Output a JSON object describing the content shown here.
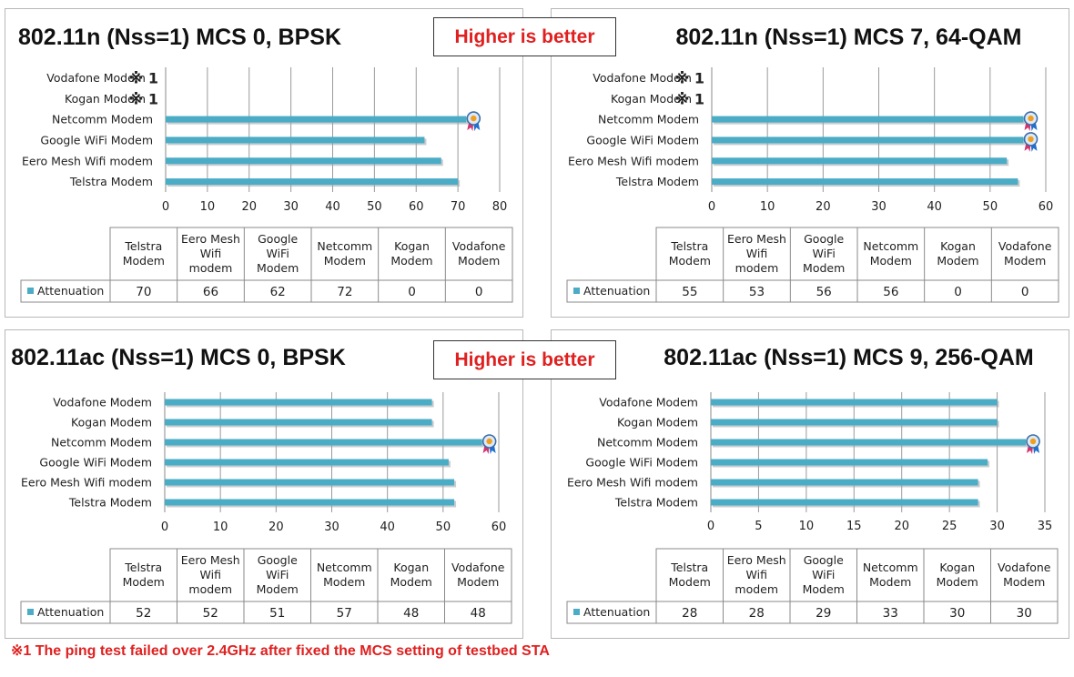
{
  "higher_is_better": "Higher is better",
  "footnote": "※1 The ping test failed over 2.4GHz after fixed the MCS setting of testbed STA",
  "colors": {
    "bar": "#4bacc6",
    "note": "#e02020"
  },
  "icons": {
    "winner": "award-ribbon-icon"
  },
  "chart_data": [
    {
      "type": "bar",
      "orientation": "horizontal",
      "title": "802.11n (Nss=1) MCS 0, BPSK",
      "categories": [
        "Telstra Modem",
        "Eero Mesh Wifi modem",
        "Google WiFi Modem",
        "Netcomm Modem",
        "Kogan Modem",
        "Vodafone Modem"
      ],
      "table_headers": [
        "Telstra\nModem",
        "Eero Mesh\nWifi\nmodem",
        "Google\nWiFi\nModem",
        "Netcomm\nModem",
        "Kogan\nModem",
        "Vodafone\nModem"
      ],
      "series": [
        {
          "name": "Attenuation",
          "values": [
            70,
            66,
            62,
            72,
            0,
            0
          ]
        }
      ],
      "xlim": [
        0,
        80
      ],
      "xticks": [
        0,
        10,
        20,
        30,
        40,
        50,
        60,
        70,
        80
      ],
      "notes": {
        "Kogan Modem": "※ 1",
        "Vodafone Modem": "※ 1"
      },
      "best": [
        "Netcomm Modem"
      ]
    },
    {
      "type": "bar",
      "orientation": "horizontal",
      "title": "802.11n (Nss=1) MCS 7, 64-QAM",
      "categories": [
        "Telstra Modem",
        "Eero Mesh Wifi modem",
        "Google WiFi Modem",
        "Netcomm Modem",
        "Kogan Modem",
        "Vodafone Modem"
      ],
      "table_headers": [
        "Telstra\nModem",
        "Eero Mesh\nWifi\nmodem",
        "Google\nWiFi\nModem",
        "Netcomm\nModem",
        "Kogan\nModem",
        "Vodafone\nModem"
      ],
      "series": [
        {
          "name": "Attenuation",
          "values": [
            55,
            53,
            56,
            56,
            0,
            0
          ]
        }
      ],
      "xlim": [
        0,
        60
      ],
      "xticks": [
        0,
        10,
        20,
        30,
        40,
        50,
        60
      ],
      "notes": {
        "Kogan Modem": "※ 1",
        "Vodafone Modem": "※ 1"
      },
      "best": [
        "Google WiFi Modem",
        "Netcomm Modem"
      ]
    },
    {
      "type": "bar",
      "orientation": "horizontal",
      "title": "802.11ac (Nss=1) MCS 0, BPSK",
      "categories": [
        "Telstra Modem",
        "Eero Mesh Wifi modem",
        "Google WiFi Modem",
        "Netcomm Modem",
        "Kogan Modem",
        "Vodafone Modem"
      ],
      "table_headers": [
        "Telstra\nModem",
        "Eero Mesh\nWifi\nmodem",
        "Google\nWiFi\nModem",
        "Netcomm\nModem",
        "Kogan\nModem",
        "Vodafone\nModem"
      ],
      "series": [
        {
          "name": "Attenuation",
          "values": [
            52,
            52,
            51,
            57,
            48,
            48
          ]
        }
      ],
      "xlim": [
        0,
        60
      ],
      "xticks": [
        0,
        10,
        20,
        30,
        40,
        50,
        60
      ],
      "notes": {},
      "best": [
        "Netcomm Modem"
      ]
    },
    {
      "type": "bar",
      "orientation": "horizontal",
      "title": "802.11ac (Nss=1) MCS 9, 256-QAM",
      "categories": [
        "Telstra Modem",
        "Eero Mesh Wifi modem",
        "Google WiFi Modem",
        "Netcomm Modem",
        "Kogan Modem",
        "Vodafone Modem"
      ],
      "table_headers": [
        "Telstra\nModem",
        "Eero Mesh\nWifi\nmodem",
        "Google\nWiFi\nModem",
        "Netcomm\nModem",
        "Kogan\nModem",
        "Vodafone\nModem"
      ],
      "series": [
        {
          "name": "Attenuation",
          "values": [
            28,
            28,
            29,
            33,
            30,
            30
          ]
        }
      ],
      "xlim": [
        0,
        35
      ],
      "xticks": [
        0,
        5,
        10,
        15,
        20,
        25,
        30,
        35
      ],
      "notes": {},
      "best": [
        "Netcomm Modem"
      ]
    }
  ]
}
